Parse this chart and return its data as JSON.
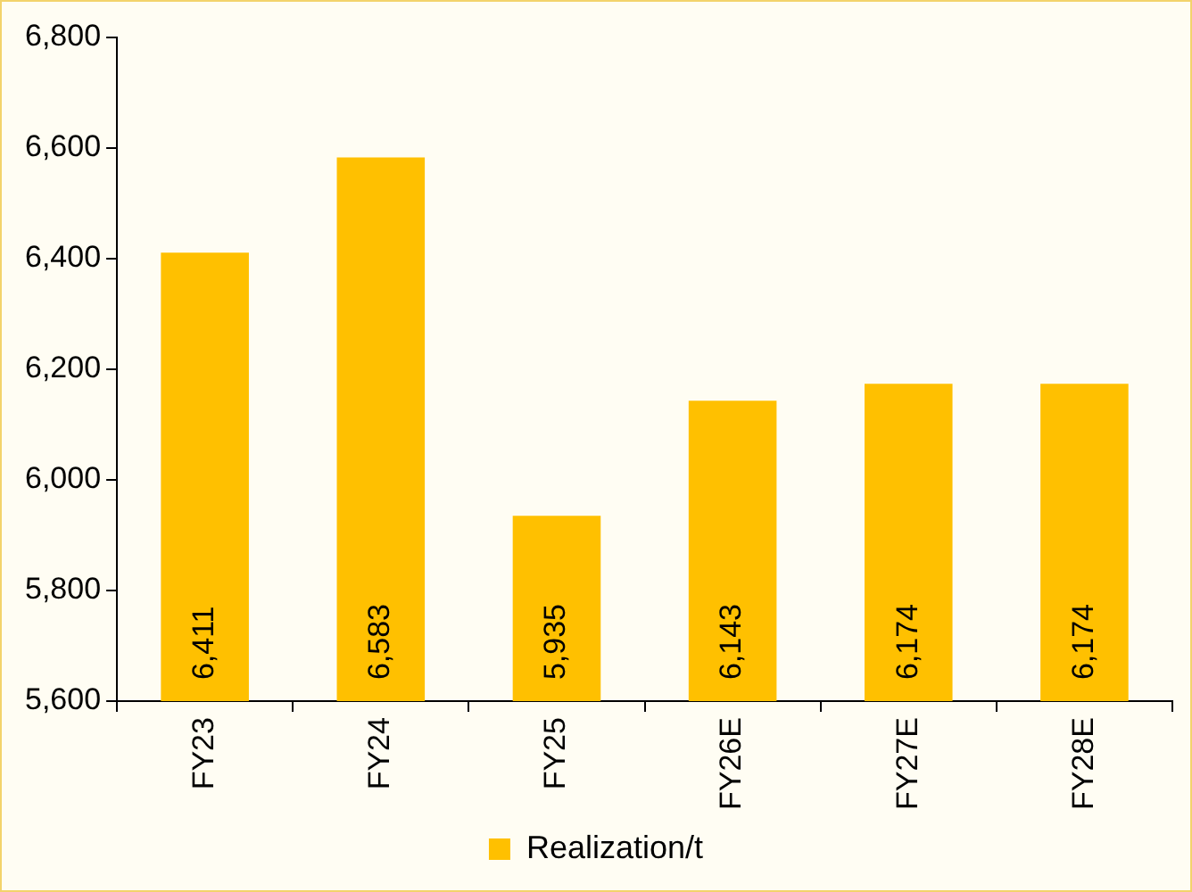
{
  "chart_data": {
    "type": "bar",
    "categories": [
      "FY23",
      "FY24",
      "FY25",
      "FY26E",
      "FY27E",
      "FY28E"
    ],
    "series": [
      {
        "name": "Realization/t",
        "color": "#ffc000",
        "values": [
          6411,
          6583,
          5935,
          6143,
          6174,
          6174
        ],
        "value_labels": [
          "6,411",
          "6,583",
          "5,935",
          "6,143",
          "6,174",
          "6,174"
        ]
      }
    ],
    "ylim": [
      5600,
      6800
    ],
    "yticks": [
      {
        "value": 5600,
        "label": "5,600"
      },
      {
        "value": 5800,
        "label": "5,800"
      },
      {
        "value": 6000,
        "label": "6,000"
      },
      {
        "value": 6200,
        "label": "6,200"
      },
      {
        "value": 6400,
        "label": "6,400"
      },
      {
        "value": 6600,
        "label": "6,600"
      },
      {
        "value": 6800,
        "label": "6,800"
      }
    ],
    "legend": "bottom"
  }
}
